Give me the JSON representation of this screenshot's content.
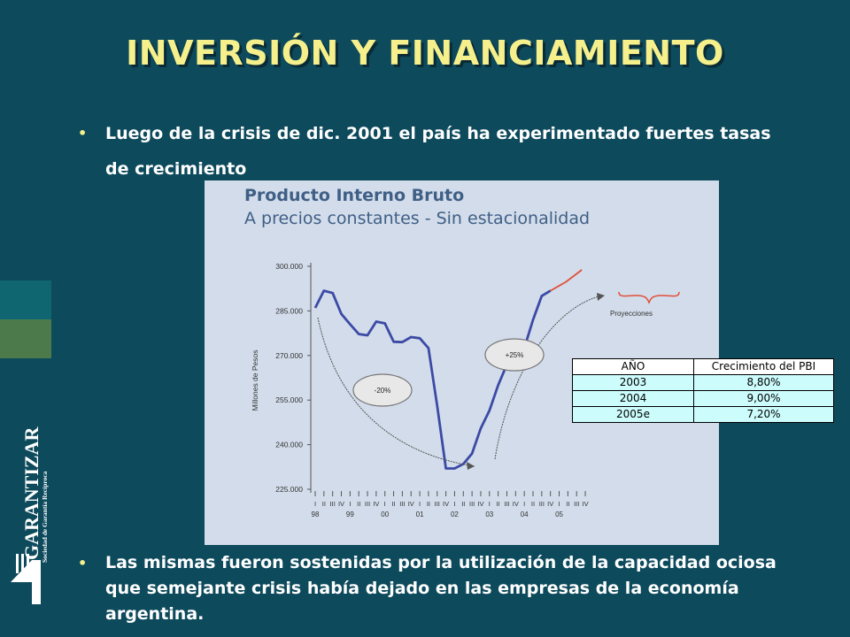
{
  "title": "INVERSIÓN Y FINANCIAMIENTO",
  "bullets": [
    "Luego de la crisis de dic. 2001 el país ha experimentado fuertes tasas de crecimiento",
    "Las mismas fueron sostenidas por la utilización de la capacidad ociosa que semejante crisis había dejado en las empresas de la economía argentina."
  ],
  "chart_data": {
    "type": "line",
    "title": "Producto Interno Bruto",
    "subtitle": "A precios constantes - Sin estacionalidad",
    "ylabel": "Millones de Pesos",
    "ylim": [
      225000,
      300000
    ],
    "yticks": [
      "300.000",
      "285.000",
      "270.000",
      "255.000",
      "240.000",
      "225.000"
    ],
    "quarter_labels": [
      "I",
      "II",
      "III",
      "IV"
    ],
    "year_labels": [
      "98",
      "99",
      "00",
      "01",
      "02",
      "03",
      "04",
      "05"
    ],
    "series": [
      {
        "values": [
          286000,
          291800,
          291000,
          284000,
          280500,
          277200,
          276800,
          281400,
          280800,
          274600,
          274500,
          276200,
          275800,
          272500,
          253000,
          232000,
          232000,
          233500,
          237000,
          245500,
          251500,
          260000,
          267000,
          270000,
          272500,
          282000,
          290000,
          291800
        ]
      },
      {
        "name": "Proyecciones",
        "values": [
          291800,
          294800,
          298800
        ]
      }
    ],
    "annotations": [
      "-20%",
      "+25%",
      "Proyecciones"
    ]
  },
  "table": {
    "headers": [
      "AÑO",
      "Crecimiento del PBI"
    ],
    "rows": [
      [
        "2003",
        "8,80%"
      ],
      [
        "2004",
        "9,00%"
      ],
      [
        "2005e",
        "7,20%"
      ]
    ]
  },
  "logo": {
    "name": "GARANTIZAR",
    "tagline": "Sociedad de Garantía Recíproca"
  },
  "colors": {
    "background": "#0d4a5c",
    "title": "#f5f08c",
    "line": "#3c4aa6",
    "projection": "#e0503a",
    "panel": "#d2dcea",
    "table": "#ccfcfc"
  }
}
